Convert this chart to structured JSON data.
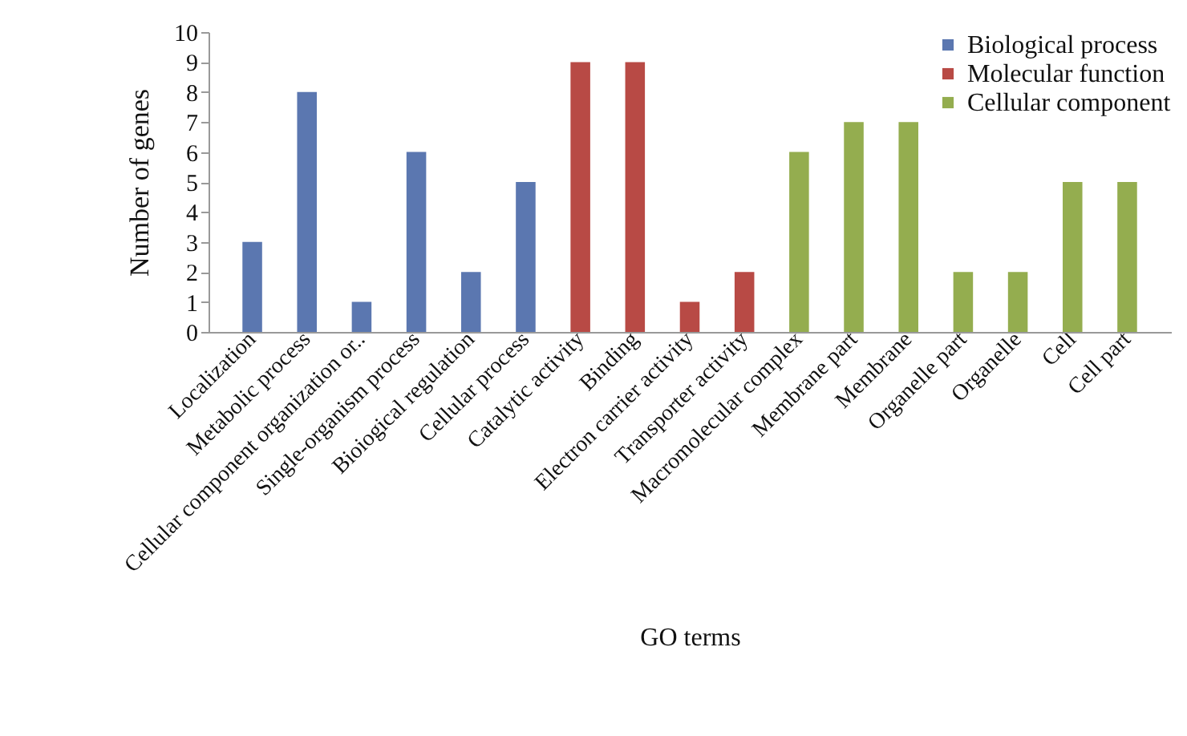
{
  "chart_data": {
    "type": "bar",
    "xlabel": "GO terms",
    "ylabel": "Number of genes",
    "categories": [
      "Localization",
      "Metabolic process",
      "Cellular component organization or..",
      "Single-organism process",
      "Bioiogical regulation",
      "Cellular process",
      "Catalytic activity",
      "Binding",
      "Electron carrier activity",
      "Transporter activity",
      "Macromolecular complex",
      "Membrane part",
      "Membrane",
      "Organelle part",
      "Organelle",
      "Cell",
      "Cell part"
    ],
    "series": [
      {
        "name": "Biological process",
        "color": "#5b77b0",
        "values": [
          3,
          8,
          1,
          6,
          2,
          5,
          null,
          null,
          null,
          null,
          null,
          null,
          null,
          null,
          null,
          null,
          null
        ]
      },
      {
        "name": "Molecular function",
        "color": "#b84a45",
        "values": [
          null,
          null,
          null,
          null,
          null,
          null,
          9,
          9,
          1,
          2,
          null,
          null,
          null,
          null,
          null,
          null,
          null
        ]
      },
      {
        "name": "Cellular component",
        "color": "#94ad4f",
        "values": [
          null,
          null,
          null,
          null,
          null,
          null,
          null,
          null,
          null,
          null,
          6,
          7,
          7,
          2,
          2,
          5,
          5
        ]
      }
    ],
    "ylim": [
      0,
      10
    ],
    "yticks": [
      0,
      1,
      2,
      3,
      4,
      5,
      6,
      7,
      8,
      9,
      10
    ],
    "grid": false,
    "legend": "top right"
  }
}
